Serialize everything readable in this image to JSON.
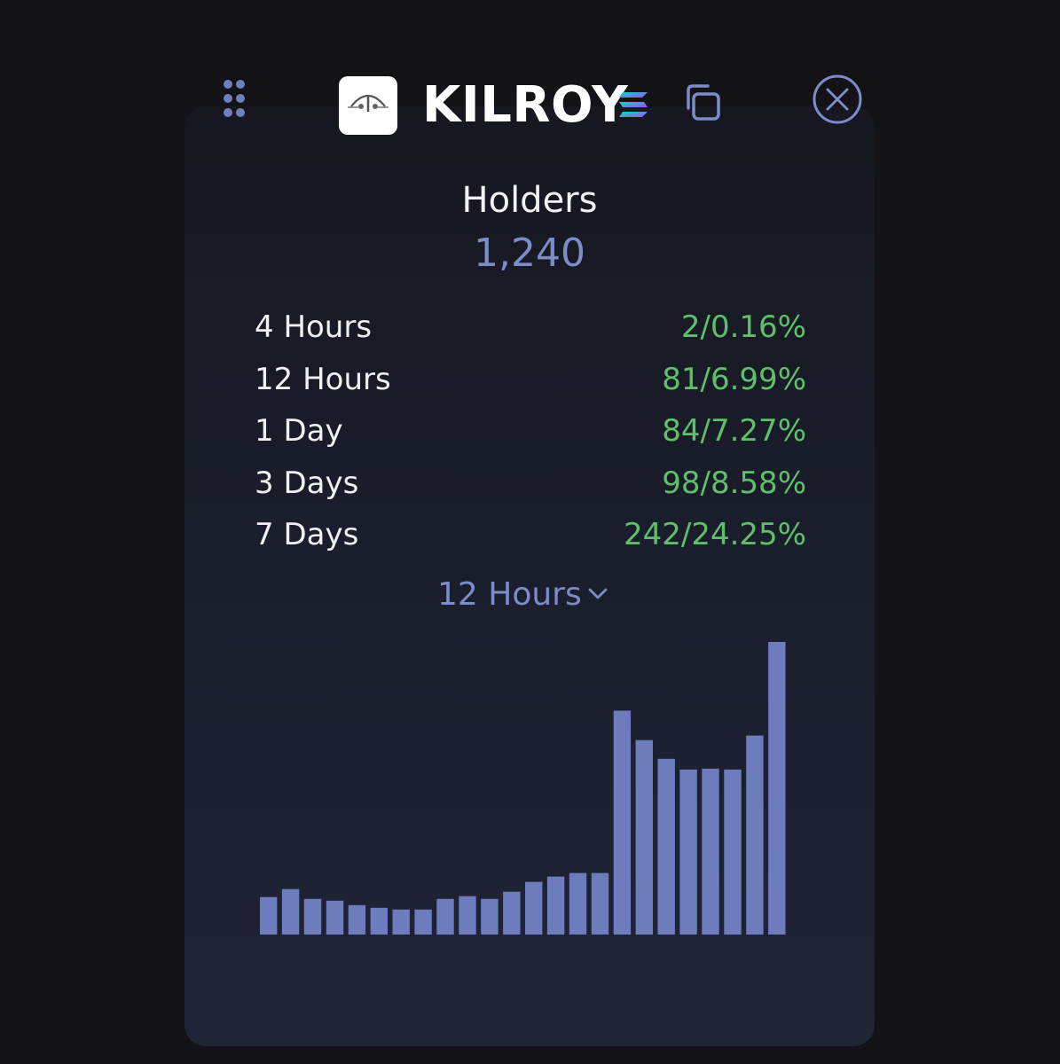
{
  "header": {
    "token_name": "KILROY",
    "icons": {
      "drag": "drag-handle-icon",
      "logo": "token-logo",
      "chain": "solana-icon",
      "copy": "copy-icon",
      "close": "close-icon"
    }
  },
  "holders": {
    "title": "Holders",
    "count": "1,240"
  },
  "stats": [
    {
      "period": "4 Hours",
      "change": "2/0.16%"
    },
    {
      "period": "12 Hours",
      "change": "81/6.99%"
    },
    {
      "period": "1 Day",
      "change": "84/7.27%"
    },
    {
      "period": "3 Days",
      "change": "98/8.58%"
    },
    {
      "period": "7 Days",
      "change": "242/24.25%"
    }
  ],
  "period_select": {
    "selected": "12 Hours"
  },
  "colors": {
    "accent": "#7c8cc8",
    "bar": "#6c7cbd",
    "positive": "#5fbf6a",
    "background": "#131217"
  },
  "chart_data": {
    "type": "bar",
    "values": [
      42,
      51,
      40,
      38,
      33,
      30,
      28,
      28,
      40,
      43,
      40,
      48,
      59,
      65,
      69,
      69,
      251,
      218,
      197,
      185,
      186,
      185,
      223,
      328
    ],
    "ylim": [
      0,
      330
    ]
  }
}
